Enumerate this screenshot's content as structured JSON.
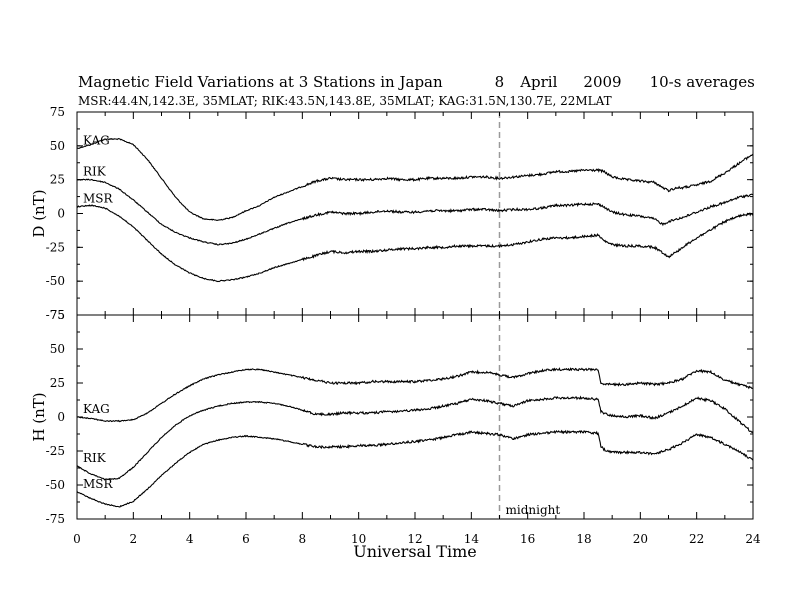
{
  "title": "Magnetic Field Variations at 3 Stations in Japan",
  "date_parts": [
    "8",
    "April",
    "2009",
    "10-s averages"
  ],
  "subtitle": "MSR:44.4N,142.3E, 35MLAT;   RIK:43.5N,143.8E, 35MLAT;   KAG:31.5N,130.7E, 22MLAT",
  "chart_data": [
    {
      "type": "line",
      "panel": "top",
      "ylabel": "D (nT)",
      "xlabel": "",
      "xlim": [
        0,
        24
      ],
      "ylim": [
        -75,
        75
      ],
      "yticks": [
        -75,
        -50,
        -25,
        0,
        25,
        50,
        75
      ],
      "xticks": [
        0,
        2,
        4,
        6,
        8,
        10,
        12,
        14,
        16,
        18,
        20,
        22,
        24
      ],
      "grid": false,
      "annotations": [
        {
          "text": "midnight",
          "x": 15,
          "style": "dashed-vertical"
        }
      ],
      "series": [
        {
          "name": "KAG",
          "x": [
            0,
            0.5,
            1,
            1.5,
            2,
            2.5,
            3,
            3.5,
            4,
            4.5,
            5,
            5.5,
            6,
            6.5,
            7,
            7.5,
            8,
            8.5,
            9,
            9.5,
            10,
            10.5,
            11,
            11.5,
            12,
            12.5,
            13,
            13.5,
            14,
            14.5,
            15,
            15.5,
            16,
            16.5,
            17,
            17.5,
            18,
            18.5,
            18.7,
            19,
            19.5,
            20,
            20.5,
            20.8,
            21,
            21.3,
            21.5,
            22,
            22.5,
            23,
            23.5,
            24
          ],
          "y": [
            48,
            51,
            55,
            55,
            51,
            40,
            26,
            12,
            1,
            -4,
            -5,
            -3,
            2,
            6,
            12,
            16,
            20,
            24,
            26,
            25,
            25,
            25,
            26,
            25,
            25,
            26,
            26,
            26,
            27,
            27,
            26,
            27,
            28,
            29,
            31,
            31,
            32,
            32,
            31,
            27,
            25,
            24,
            23,
            19,
            17,
            19,
            19,
            21,
            24,
            30,
            37,
            44
          ]
        },
        {
          "name": "RIK",
          "x": [
            0,
            0.5,
            1,
            1.5,
            2,
            2.5,
            3,
            3.5,
            4,
            4.5,
            5,
            5.5,
            6,
            6.5,
            7,
            7.5,
            8,
            8.5,
            9,
            9.5,
            10,
            10.5,
            11,
            11.5,
            12,
            12.5,
            13,
            13.5,
            14,
            14.5,
            15,
            15.5,
            16,
            16.5,
            17,
            17.5,
            18,
            18.5,
            18.7,
            19,
            19.5,
            20,
            20.5,
            20.8,
            21,
            21.3,
            21.5,
            22,
            22.5,
            23,
            23.5,
            24
          ],
          "y": [
            25,
            25,
            23,
            18,
            10,
            1,
            -8,
            -14,
            -18,
            -21,
            -23,
            -22,
            -19,
            -15,
            -11,
            -7,
            -4,
            -1,
            1,
            0,
            0,
            1,
            2,
            1,
            1,
            2,
            2,
            2,
            3,
            3,
            2,
            3,
            3,
            4,
            6,
            6,
            7,
            7,
            5,
            1,
            -1,
            -2,
            -4,
            -8,
            -6,
            -4,
            -3,
            1,
            5,
            8,
            12,
            14
          ]
        },
        {
          "name": "MSR",
          "x": [
            0,
            0.5,
            1,
            1.5,
            2,
            2.5,
            3,
            3.5,
            4,
            4.5,
            5,
            5.5,
            6,
            6.5,
            7,
            7.5,
            8,
            8.5,
            9,
            9.5,
            10,
            10.5,
            11,
            11.5,
            12,
            12.5,
            13,
            13.5,
            14,
            14.5,
            15,
            15.5,
            16,
            16.5,
            17,
            17.5,
            18,
            18.5,
            18.7,
            19,
            19.5,
            20,
            20.5,
            20.8,
            21,
            21.3,
            21.5,
            22,
            22.5,
            23,
            23.5,
            24
          ],
          "y": [
            5,
            6,
            4,
            -2,
            -10,
            -20,
            -30,
            -38,
            -44,
            -48,
            -50,
            -49,
            -47,
            -44,
            -40,
            -37,
            -34,
            -31,
            -28,
            -29,
            -28,
            -28,
            -27,
            -26,
            -26,
            -25,
            -25,
            -24,
            -24,
            -24,
            -24,
            -23,
            -21,
            -19,
            -18,
            -18,
            -17,
            -16,
            -20,
            -23,
            -24,
            -24,
            -25,
            -29,
            -32,
            -28,
            -25,
            -18,
            -12,
            -6,
            -2,
            0
          ]
        }
      ]
    },
    {
      "type": "line",
      "panel": "bottom",
      "ylabel": "H (nT)",
      "xlabel": "Universal Time",
      "xlim": [
        0,
        24
      ],
      "ylim": [
        -75,
        75
      ],
      "yticks": [
        -75,
        -50,
        -25,
        0,
        25,
        50,
        75
      ],
      "xticks": [
        0,
        2,
        4,
        6,
        8,
        10,
        12,
        14,
        16,
        18,
        20,
        22,
        24
      ],
      "grid": false,
      "annotations": [
        {
          "text": "midnight",
          "x": 15,
          "style": "dashed-vertical"
        }
      ],
      "series": [
        {
          "name": "KAG",
          "x": [
            0,
            0.5,
            1,
            1.5,
            2,
            2.5,
            3,
            3.5,
            4,
            4.5,
            5,
            5.5,
            6,
            6.5,
            7,
            7.5,
            8,
            8.5,
            9,
            9.5,
            10,
            10.5,
            11,
            11.5,
            12,
            12.5,
            13,
            13.5,
            14,
            14.5,
            15,
            15.5,
            16,
            16.5,
            17,
            17.5,
            18,
            18.5,
            18.6,
            18.8,
            19,
            19.5,
            20,
            20.5,
            21,
            21.5,
            22,
            22.5,
            23,
            23.5,
            24
          ],
          "y": [
            0,
            -1,
            -3,
            -3,
            -2,
            3,
            10,
            17,
            23,
            28,
            31,
            33,
            35,
            35,
            33,
            31,
            29,
            27,
            25,
            25,
            25,
            26,
            26,
            26,
            26,
            27,
            28,
            30,
            33,
            33,
            31,
            29,
            32,
            34,
            35,
            35,
            35,
            35,
            25,
            24,
            24,
            24,
            25,
            24,
            25,
            28,
            34,
            33,
            27,
            24,
            21
          ]
        },
        {
          "name": "RIK",
          "x": [
            0,
            0.5,
            1,
            1.5,
            2,
            2.5,
            3,
            3.5,
            4,
            4.5,
            5,
            5.5,
            6,
            6.5,
            7,
            7.5,
            8,
            8.5,
            9,
            9.5,
            10,
            10.5,
            11,
            11.5,
            12,
            12.5,
            13,
            13.5,
            14,
            14.5,
            15,
            15.5,
            16,
            16.5,
            17,
            17.5,
            18,
            18.5,
            18.6,
            18.8,
            19,
            19.5,
            20,
            20.5,
            21,
            21.5,
            22,
            22.5,
            23,
            23.5,
            24
          ],
          "y": [
            -36,
            -42,
            -46,
            -45,
            -37,
            -26,
            -15,
            -6,
            1,
            5,
            8,
            10,
            11,
            11,
            10,
            8,
            5,
            2,
            2,
            3,
            3,
            3,
            4,
            4,
            5,
            6,
            8,
            10,
            13,
            12,
            10,
            8,
            12,
            13,
            14,
            14,
            14,
            13,
            4,
            2,
            1,
            0,
            1,
            -1,
            3,
            8,
            14,
            12,
            6,
            -3,
            -12
          ]
        },
        {
          "name": "MSR",
          "x": [
            0,
            0.5,
            1,
            1.5,
            2,
            2.5,
            3,
            3.5,
            4,
            4.5,
            5,
            5.5,
            6,
            6.5,
            7,
            7.5,
            8,
            8.5,
            9,
            9.5,
            10,
            10.5,
            11,
            11.5,
            12,
            12.5,
            13,
            13.5,
            14,
            14.5,
            15,
            15.5,
            16,
            16.5,
            17,
            17.5,
            18,
            18.5,
            18.6,
            18.8,
            19,
            19.5,
            20,
            20.5,
            21,
            21.5,
            22,
            22.5,
            23,
            23.5,
            24
          ],
          "y": [
            -55,
            -60,
            -64,
            -66,
            -62,
            -53,
            -43,
            -34,
            -26,
            -20,
            -17,
            -15,
            -14,
            -15,
            -16,
            -18,
            -20,
            -22,
            -22,
            -22,
            -21,
            -21,
            -20,
            -19,
            -18,
            -17,
            -15,
            -13,
            -11,
            -12,
            -13,
            -16,
            -13,
            -12,
            -11,
            -11,
            -11,
            -12,
            -22,
            -25,
            -26,
            -26,
            -26,
            -27,
            -24,
            -19,
            -13,
            -15,
            -20,
            -25,
            -32
          ]
        }
      ]
    }
  ]
}
